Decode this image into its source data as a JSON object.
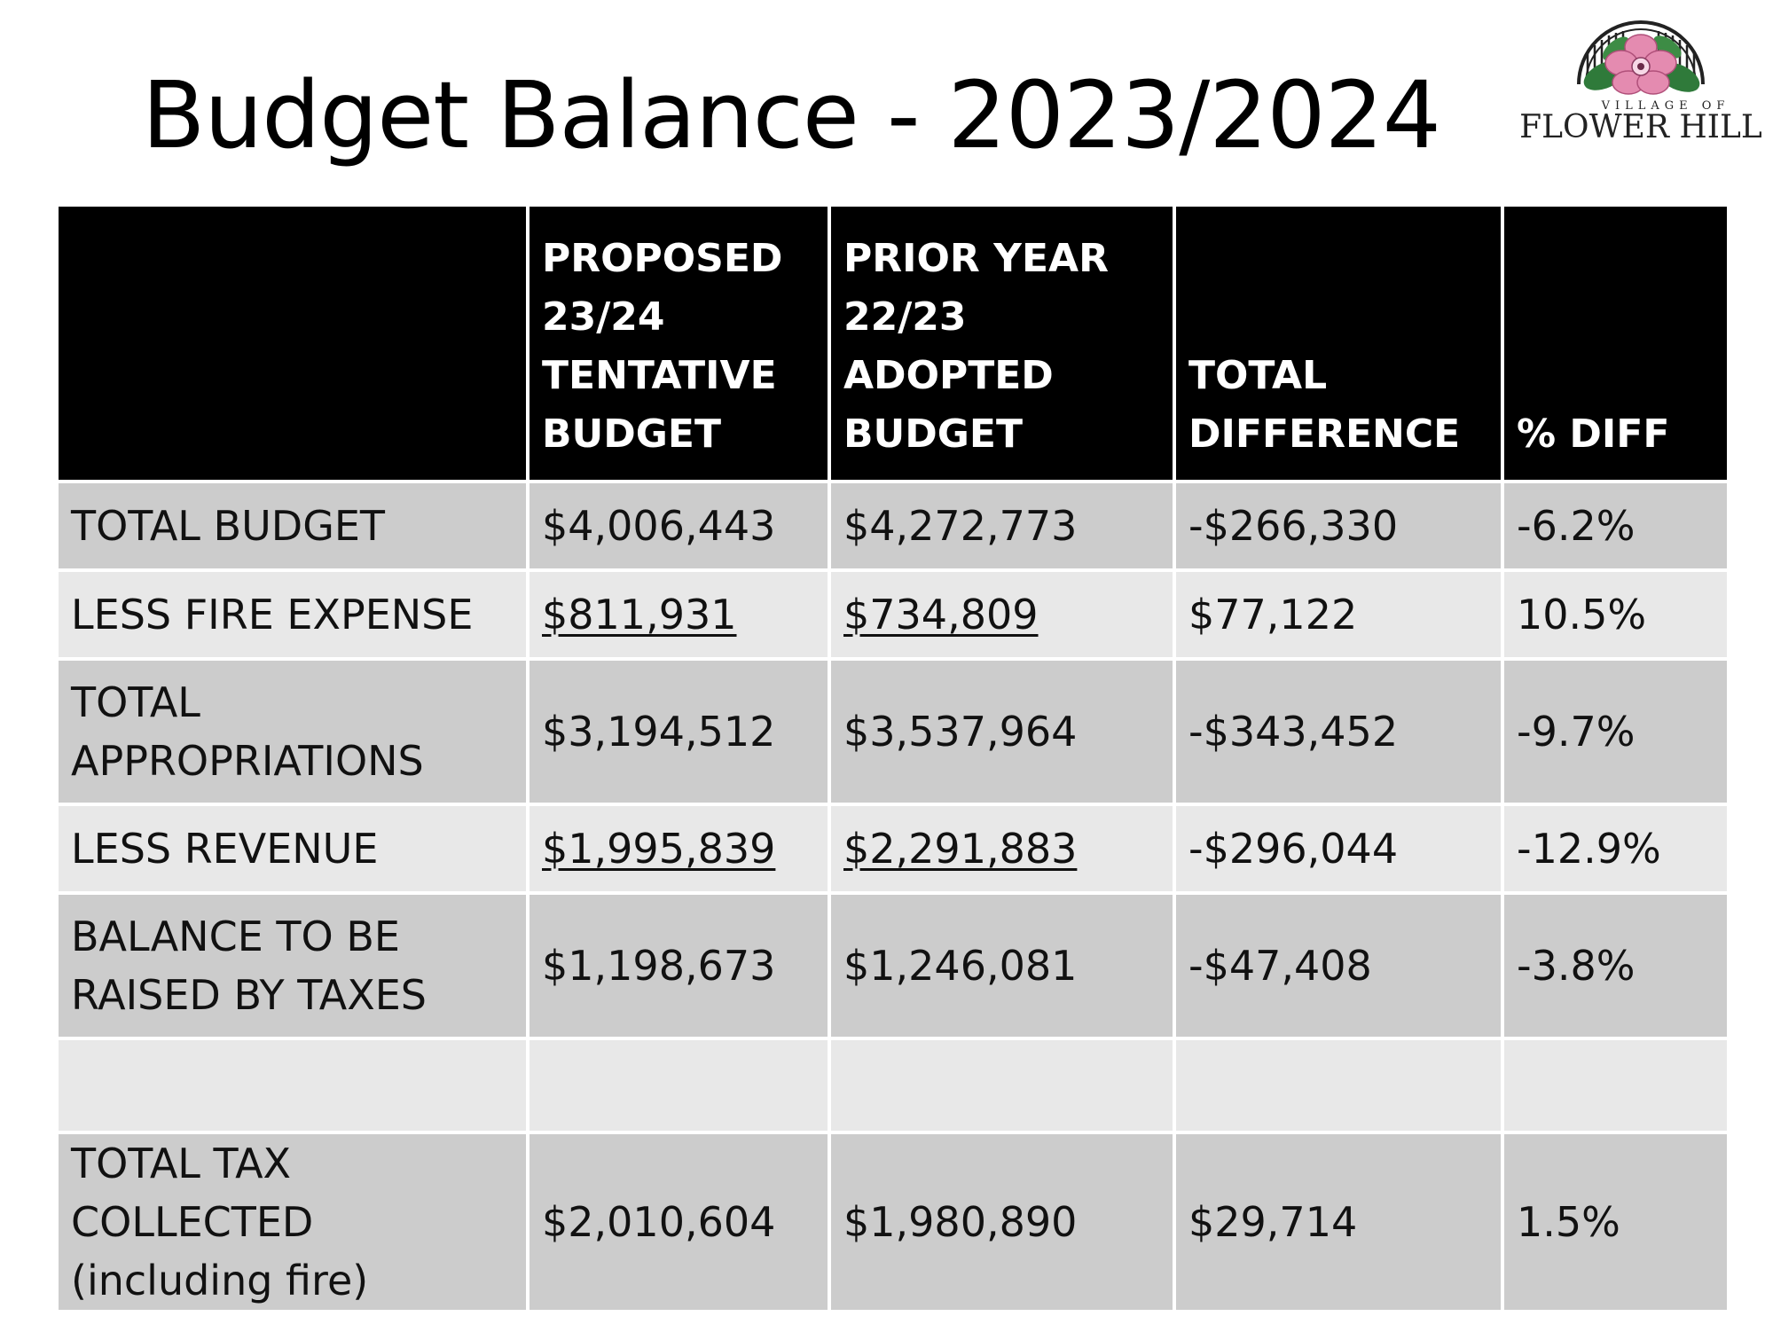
{
  "title": "Budget Balance - 2023/2024",
  "logo": {
    "top_text": "VILLAGE OF",
    "name": "FLOWER HILL"
  },
  "table": {
    "headers": [
      "",
      "PROPOSED\n23/24\nTENTATIVE\nBUDGET",
      "PRIOR YEAR\n22/23\nADOPTED\nBUDGET",
      "TOTAL\nDIFFERENCE",
      "% DIFF"
    ],
    "rows": [
      {
        "label": "TOTAL BUDGET",
        "proposed": "$4,006,443",
        "prior": "$4,272,773",
        "difference": "-$266,330",
        "pct": "-6.2%"
      },
      {
        "label": "LESS FIRE EXPENSE",
        "proposed": "$811,931",
        "prior": "$734,809",
        "difference": "$77,122",
        "pct": "10.5%"
      },
      {
        "label": "TOTAL\nAPPROPRIATIONS",
        "proposed": "$3,194,512",
        "prior": "$3,537,964",
        "difference": "-$343,452",
        "pct": "-9.7%"
      },
      {
        "label": "LESS REVENUE",
        "proposed": "$1,995,839",
        "prior": "$2,291,883",
        "difference": "-$296,044",
        "pct": "-12.9%"
      },
      {
        "label": "BALANCE TO BE\nRAISED BY TAXES",
        "proposed": "$1,198,673",
        "prior": "$1,246,081",
        "difference": "-$47,408",
        "pct": "-3.8%"
      },
      {
        "label": "",
        "proposed": "",
        "prior": "",
        "difference": "",
        "pct": ""
      },
      {
        "label": "TOTAL TAX COLLECTED\n(including fire)",
        "proposed": "$2,010,604",
        "prior": "$1,980,890",
        "difference": "$29,714",
        "pct": "1.5%"
      }
    ]
  },
  "colors": {
    "header_bg": "#000000",
    "row_dark": "#cccccc",
    "row_light": "#e8e8e8",
    "flower_pink": "#e48bb0",
    "leaf_green": "#2f7a3a"
  }
}
